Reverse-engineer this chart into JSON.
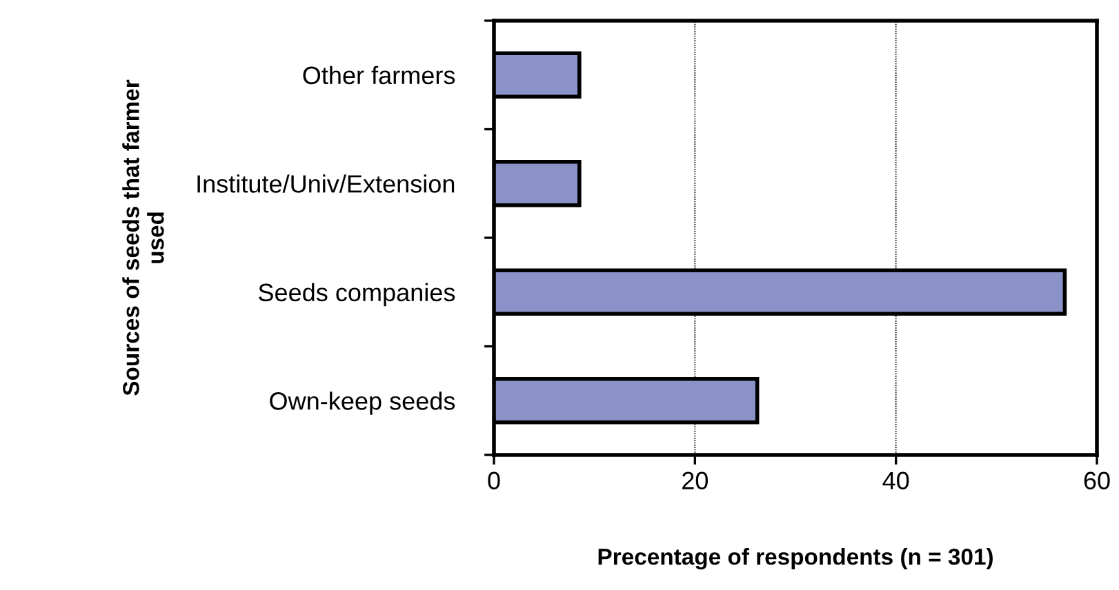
{
  "chart_data": {
    "type": "bar",
    "orientation": "horizontal",
    "categories": [
      "Other farmers",
      "Institute/Univ/Extension",
      "Seeds companies",
      "Own-keep seeds"
    ],
    "values": [
      8.5,
      8.5,
      56.8,
      26.2
    ],
    "color": "#8a92c8",
    "xlim": [
      0,
      60
    ],
    "xticks": [
      0,
      20,
      40,
      60
    ],
    "xlabel": "Precentage of respondents (n = 301)",
    "ylabel": "Sources of seeds that farmer\nused",
    "grid": "x",
    "legend": false
  }
}
